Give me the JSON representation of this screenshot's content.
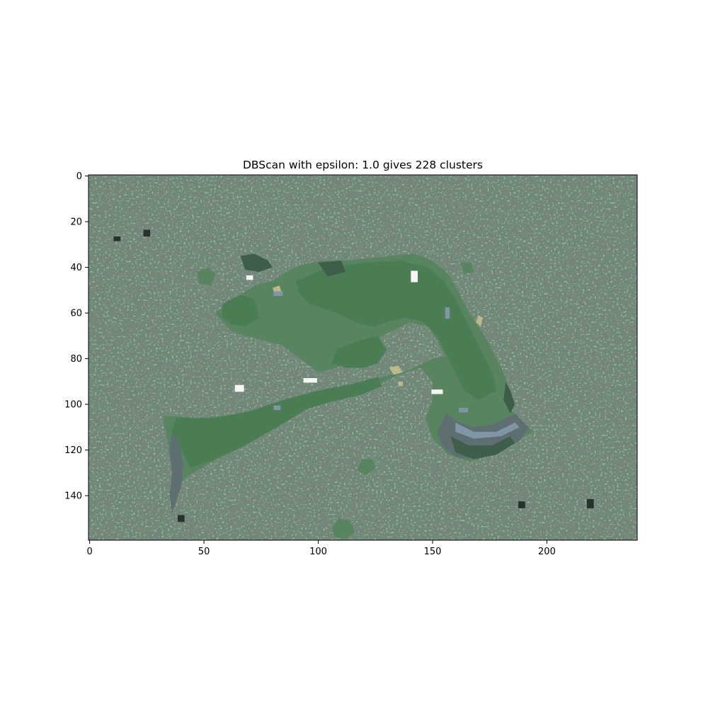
{
  "chart_data": {
    "type": "heatmap",
    "title": "DBScan with epsilon: 1.0 gives 228 clusters",
    "xlabel": "",
    "ylabel": "",
    "image_width": 240,
    "image_height": 160,
    "xlim": [
      -0.5,
      239.5
    ],
    "ylim": [
      159.5,
      -0.5
    ],
    "x_ticks": [
      0,
      50,
      100,
      150,
      200
    ],
    "y_ticks": [
      0,
      20,
      40,
      60,
      80,
      100,
      120,
      140
    ],
    "x_tick_labels": [
      "0",
      "50",
      "100",
      "150",
      "200"
    ],
    "y_tick_labels": [
      "0",
      "20",
      "40",
      "60",
      "80",
      "100",
      "120",
      "140"
    ],
    "grid": false,
    "colors": {
      "background_cluster": "#73867a",
      "main_cluster": "#4b7d55",
      "mid_cluster": "#58855f",
      "dark_cluster": "#3f5e4a",
      "slate_cluster": "#5d6f70",
      "blue_grey_cluster": "#8096a6",
      "tan_cluster": "#b9b98a",
      "white_cluster": "#f4f6f4",
      "black_cluster": "#26322c"
    },
    "regions": [
      {
        "color": "mid_cluster",
        "kind": "poly",
        "points": [
          [
            32,
            105
          ],
          [
            48,
            106
          ],
          [
            70,
            104
          ],
          [
            85,
            99
          ],
          [
            100,
            94
          ],
          [
            115,
            92
          ],
          [
            128,
            88
          ],
          [
            140,
            85
          ],
          [
            150,
            80
          ],
          [
            160,
            78
          ],
          [
            168,
            82
          ],
          [
            175,
            88
          ],
          [
            180,
            95
          ],
          [
            184,
            102
          ],
          [
            190,
            108
          ],
          [
            194,
            112
          ],
          [
            186,
            116
          ],
          [
            176,
            122
          ],
          [
            166,
            125
          ],
          [
            157,
            122
          ],
          [
            150,
            115
          ],
          [
            147,
            106
          ],
          [
            150,
            98
          ],
          [
            150,
            90
          ],
          [
            145,
            84
          ],
          [
            135,
            87
          ],
          [
            125,
            92
          ],
          [
            115,
            96
          ],
          [
            105,
            99
          ],
          [
            95,
            102
          ],
          [
            82,
            110
          ],
          [
            68,
            118
          ],
          [
            52,
            126
          ],
          [
            42,
            132
          ],
          [
            38,
            138
          ],
          [
            36,
            128
          ],
          [
            34,
            116
          ]
        ]
      },
      {
        "color": "main_cluster",
        "kind": "poly",
        "points": [
          [
            38,
            106
          ],
          [
            55,
            106
          ],
          [
            70,
            103
          ],
          [
            85,
            98
          ],
          [
            100,
            94
          ],
          [
            115,
            91
          ],
          [
            126,
            88
          ],
          [
            128,
            92
          ],
          [
            118,
            96
          ],
          [
            105,
            99
          ],
          [
            95,
            102
          ],
          [
            82,
            110
          ],
          [
            68,
            118
          ],
          [
            52,
            125
          ],
          [
            44,
            128
          ],
          [
            40,
            120
          ],
          [
            36,
            112
          ]
        ]
      },
      {
        "color": "mid_cluster",
        "kind": "poly",
        "points": [
          [
            55,
            60
          ],
          [
            60,
            56
          ],
          [
            66,
            52
          ],
          [
            72,
            48
          ],
          [
            80,
            46
          ],
          [
            86,
            42
          ],
          [
            92,
            39
          ],
          [
            102,
            37
          ],
          [
            112,
            37
          ],
          [
            122,
            36
          ],
          [
            132,
            35
          ],
          [
            142,
            34
          ],
          [
            150,
            37
          ],
          [
            157,
            43
          ],
          [
            161,
            50
          ],
          [
            165,
            58
          ],
          [
            170,
            66
          ],
          [
            174,
            72
          ],
          [
            178,
            80
          ],
          [
            182,
            88
          ],
          [
            182,
            96
          ],
          [
            176,
            100
          ],
          [
            168,
            100
          ],
          [
            162,
            96
          ],
          [
            160,
            88
          ],
          [
            156,
            80
          ],
          [
            152,
            72
          ],
          [
            148,
            66
          ],
          [
            140,
            64
          ],
          [
            134,
            67
          ],
          [
            128,
            70
          ],
          [
            122,
            74
          ],
          [
            116,
            78
          ],
          [
            108,
            84
          ],
          [
            100,
            86
          ],
          [
            92,
            80
          ],
          [
            84,
            74
          ],
          [
            76,
            72
          ],
          [
            68,
            70
          ],
          [
            62,
            68
          ]
        ]
      },
      {
        "color": "main_cluster",
        "kind": "poly",
        "points": [
          [
            90,
            46
          ],
          [
            104,
            40
          ],
          [
            120,
            38
          ],
          [
            136,
            37
          ],
          [
            148,
            40
          ],
          [
            155,
            46
          ],
          [
            160,
            54
          ],
          [
            164,
            62
          ],
          [
            168,
            70
          ],
          [
            172,
            78
          ],
          [
            176,
            86
          ],
          [
            178,
            94
          ],
          [
            170,
            98
          ],
          [
            164,
            94
          ],
          [
            160,
            86
          ],
          [
            156,
            78
          ],
          [
            152,
            70
          ],
          [
            146,
            64
          ],
          [
            138,
            62
          ],
          [
            130,
            64
          ],
          [
            124,
            66
          ],
          [
            116,
            64
          ],
          [
            108,
            60
          ],
          [
            102,
            58
          ],
          [
            96,
            56
          ],
          [
            92,
            52
          ]
        ]
      },
      {
        "color": "main_cluster",
        "kind": "poly",
        "points": [
          [
            108,
            76
          ],
          [
            118,
            72
          ],
          [
            126,
            70
          ],
          [
            130,
            76
          ],
          [
            126,
            82
          ],
          [
            120,
            84
          ],
          [
            112,
            84
          ],
          [
            106,
            82
          ]
        ]
      },
      {
        "color": "main_cluster",
        "kind": "poly",
        "points": [
          [
            58,
            56
          ],
          [
            66,
            52
          ],
          [
            72,
            54
          ],
          [
            74,
            62
          ],
          [
            68,
            66
          ],
          [
            62,
            65
          ],
          [
            58,
            62
          ]
        ]
      },
      {
        "color": "slate_cluster",
        "kind": "poly",
        "points": [
          [
            156,
            104
          ],
          [
            162,
            108
          ],
          [
            168,
            110
          ],
          [
            176,
            109
          ],
          [
            182,
            106
          ],
          [
            186,
            104
          ],
          [
            192,
            110
          ],
          [
            188,
            116
          ],
          [
            180,
            120
          ],
          [
            170,
            124
          ],
          [
            160,
            123
          ],
          [
            154,
            118
          ],
          [
            152,
            112
          ]
        ]
      },
      {
        "color": "dark_cluster",
        "kind": "poly",
        "points": [
          [
            158,
            114
          ],
          [
            166,
            118
          ],
          [
            176,
            118
          ],
          [
            184,
            114
          ],
          [
            186,
            117
          ],
          [
            178,
            122
          ],
          [
            168,
            124
          ],
          [
            160,
            121
          ]
        ]
      },
      {
        "color": "blue_grey_cluster",
        "kind": "poly",
        "points": [
          [
            160,
            108
          ],
          [
            168,
            112
          ],
          [
            178,
            112
          ],
          [
            186,
            108
          ],
          [
            188,
            110
          ],
          [
            180,
            114
          ],
          [
            168,
            115
          ],
          [
            160,
            112
          ]
        ]
      },
      {
        "color": "dark_cluster",
        "kind": "poly",
        "points": [
          [
            66,
            35
          ],
          [
            72,
            34
          ],
          [
            78,
            37
          ],
          [
            80,
            40
          ],
          [
            74,
            42
          ],
          [
            68,
            41
          ]
        ]
      },
      {
        "color": "dark_cluster",
        "kind": "poly",
        "points": [
          [
            100,
            38
          ],
          [
            110,
            37
          ],
          [
            112,
            42
          ],
          [
            104,
            44
          ]
        ]
      },
      {
        "color": "mid_cluster",
        "kind": "poly",
        "points": [
          [
            47,
            42
          ],
          [
            52,
            40
          ],
          [
            55,
            43
          ],
          [
            53,
            48
          ],
          [
            48,
            47
          ]
        ]
      },
      {
        "color": "mid_cluster",
        "kind": "poly",
        "points": [
          [
            162,
            38
          ],
          [
            167,
            38
          ],
          [
            168,
            42
          ],
          [
            164,
            43
          ]
        ]
      },
      {
        "color": "mid_cluster",
        "kind": "poly",
        "points": [
          [
            109,
            150
          ],
          [
            114,
            151
          ],
          [
            116,
            156
          ],
          [
            112,
            159
          ],
          [
            107,
            158
          ],
          [
            106,
            154
          ]
        ]
      },
      {
        "color": "mid_cluster",
        "kind": "poly",
        "points": [
          [
            119,
            124
          ],
          [
            124,
            124
          ],
          [
            125,
            128
          ],
          [
            121,
            131
          ],
          [
            117,
            129
          ]
        ]
      },
      {
        "color": "slate_cluster",
        "kind": "poly",
        "points": [
          [
            36,
            112
          ],
          [
            39,
            116
          ],
          [
            41,
            126
          ],
          [
            40,
            136
          ],
          [
            38,
            142
          ],
          [
            36,
            148
          ],
          [
            35,
            140
          ],
          [
            36,
            130
          ],
          [
            35,
            120
          ]
        ]
      },
      {
        "color": "dark_cluster",
        "kind": "poly",
        "points": [
          [
            182,
            90
          ],
          [
            184,
            94
          ],
          [
            186,
            100
          ],
          [
            184,
            104
          ],
          [
            181,
            98
          ]
        ]
      },
      {
        "color": "tan_cluster",
        "kind": "poly",
        "points": [
          [
            80,
            49
          ],
          [
            83,
            48
          ],
          [
            84,
            51
          ],
          [
            81,
            52
          ]
        ]
      },
      {
        "color": "tan_cluster",
        "kind": "poly",
        "points": [
          [
            131,
            84
          ],
          [
            135,
            83
          ],
          [
            137,
            86
          ],
          [
            133,
            87
          ]
        ]
      },
      {
        "color": "tan_cluster",
        "kind": "poly",
        "points": [
          [
            170,
            61
          ],
          [
            172,
            62
          ],
          [
            171,
            66
          ],
          [
            169,
            64
          ]
        ]
      },
      {
        "color": "tan_cluster",
        "kind": "poly",
        "points": [
          [
            135,
            90
          ],
          [
            137,
            90
          ],
          [
            137,
            92
          ],
          [
            135,
            92
          ]
        ]
      },
      {
        "color": "white_cluster",
        "kind": "rect",
        "points": [
          [
            141,
            42
          ],
          [
            143,
            46
          ]
        ]
      },
      {
        "color": "white_cluster",
        "kind": "rect",
        "points": [
          [
            94,
            89
          ],
          [
            99,
            90
          ]
        ]
      },
      {
        "color": "white_cluster",
        "kind": "rect",
        "points": [
          [
            150,
            94
          ],
          [
            154,
            95
          ]
        ]
      },
      {
        "color": "white_cluster",
        "kind": "rect",
        "points": [
          [
            69,
            44
          ],
          [
            71,
            45
          ]
        ]
      },
      {
        "color": "white_cluster",
        "kind": "rect",
        "points": [
          [
            81,
            51
          ],
          [
            83,
            52
          ]
        ]
      },
      {
        "color": "white_cluster",
        "kind": "rect",
        "points": [
          [
            64,
            92
          ],
          [
            67,
            94
          ]
        ]
      },
      {
        "color": "blue_grey_cluster",
        "kind": "rect",
        "points": [
          [
            81,
            51
          ],
          [
            84,
            52
          ]
        ]
      },
      {
        "color": "blue_grey_cluster",
        "kind": "rect",
        "points": [
          [
            162,
            102
          ],
          [
            165,
            103
          ]
        ]
      },
      {
        "color": "blue_grey_cluster",
        "kind": "rect",
        "points": [
          [
            81,
            101
          ],
          [
            83,
            102
          ]
        ]
      },
      {
        "color": "blue_grey_cluster",
        "kind": "rect",
        "points": [
          [
            156,
            58
          ],
          [
            157,
            62
          ]
        ]
      },
      {
        "color": "black_cluster",
        "kind": "rect",
        "points": [
          [
            188,
            143
          ],
          [
            190,
            145
          ]
        ]
      },
      {
        "color": "black_cluster",
        "kind": "rect",
        "points": [
          [
            218,
            142
          ],
          [
            220,
            145
          ]
        ]
      },
      {
        "color": "black_cluster",
        "kind": "rect",
        "points": [
          [
            24,
            24
          ],
          [
            26,
            26
          ]
        ]
      },
      {
        "color": "black_cluster",
        "kind": "rect",
        "points": [
          [
            11,
            27
          ],
          [
            13,
            28
          ]
        ]
      },
      {
        "color": "black_cluster",
        "kind": "rect",
        "points": [
          [
            39,
            149
          ],
          [
            41,
            151
          ]
        ]
      }
    ]
  }
}
